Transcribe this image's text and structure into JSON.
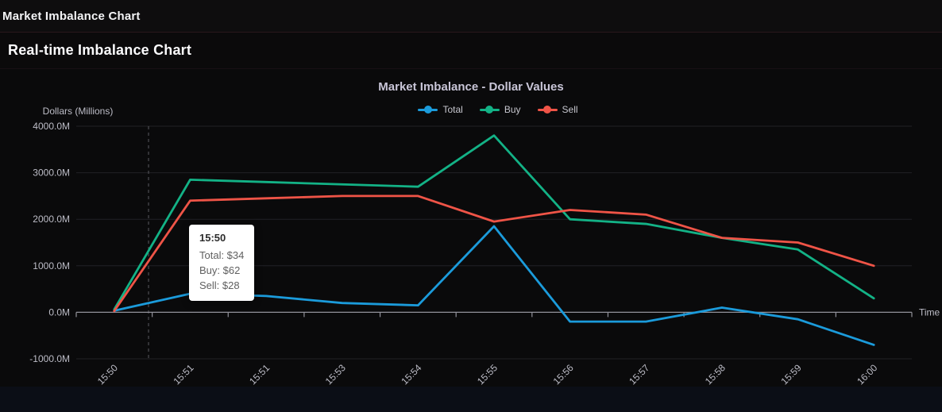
{
  "window": {
    "title": "Market Imbalance Chart"
  },
  "section": {
    "heading": "Real-time Imbalance Chart"
  },
  "chart_data": {
    "type": "line",
    "title": "Market Imbalance - Dollar Values",
    "xlabel": "Time",
    "ylabel": "Dollars (Millions)",
    "categories": [
      "15:50",
      "15:51",
      "15:51",
      "15:53",
      "15:54",
      "15:55",
      "15:56",
      "15:57",
      "15:58",
      "15:59",
      "16:00"
    ],
    "series": [
      {
        "name": "Total",
        "color": "#1b9bdb",
        "values": [
          34,
          400,
          350,
          200,
          150,
          1850,
          -200,
          -200,
          100,
          -150,
          -700
        ]
      },
      {
        "name": "Buy",
        "color": "#13b286",
        "values": [
          62,
          2850,
          2800,
          2750,
          2700,
          3800,
          2000,
          1900,
          1600,
          1350,
          300
        ]
      },
      {
        "name": "Sell",
        "color": "#ef5447",
        "values": [
          28,
          2400,
          2450,
          2500,
          2500,
          1950,
          2200,
          2100,
          1600,
          1500,
          1000
        ]
      }
    ],
    "ylim": [
      -1000,
      4000
    ],
    "y_ticks": [
      {
        "value": 4000,
        "label": "4000.0M"
      },
      {
        "value": 3000,
        "label": "3000.0M"
      },
      {
        "value": 2000,
        "label": "2000.0M"
      },
      {
        "value": 1000,
        "label": "1000.0M"
      },
      {
        "value": 0,
        "label": "0.0M"
      },
      {
        "value": -1000,
        "label": "-1000.0M"
      }
    ],
    "grid": true,
    "legend_position": "top",
    "hovered_category": "15:50"
  },
  "tooltip": {
    "title": "15:50",
    "rows": [
      "Total: $34",
      "Buy: $62",
      "Sell: $28"
    ]
  },
  "colors": {
    "axis_line": "#92929b",
    "grid_line": "#212126",
    "tick_label": "#bdbdc7",
    "crosshair": "#5a5a60"
  }
}
